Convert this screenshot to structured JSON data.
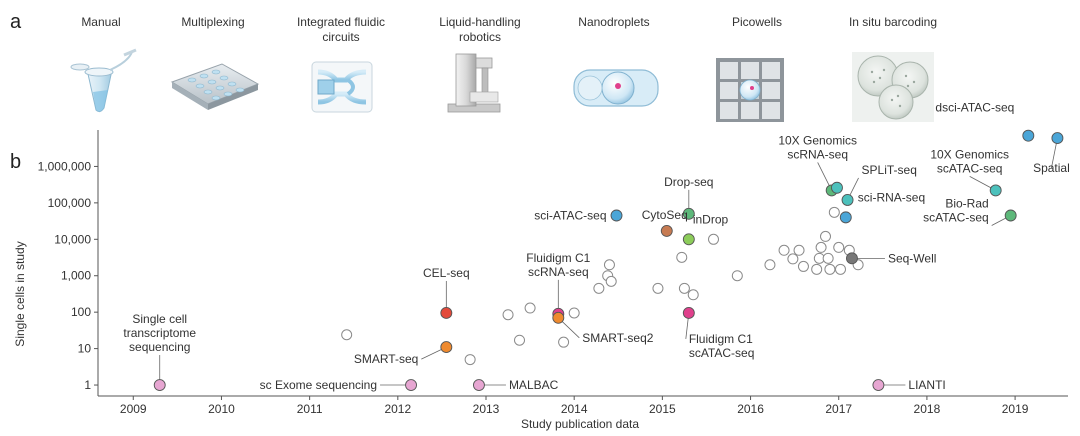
{
  "panels": {
    "a": "a",
    "b": "b"
  },
  "technologies": [
    {
      "lines": [
        "Manual"
      ],
      "icon": "tube-icon"
    },
    {
      "lines": [
        "Multiplexing"
      ],
      "icon": "plate-icon"
    },
    {
      "lines": [
        "Integrated fluidic",
        "circuits"
      ],
      "icon": "fluidic-circuit-icon"
    },
    {
      "lines": [
        "Liquid-handling",
        "robotics"
      ],
      "icon": "robot-icon"
    },
    {
      "lines": [
        "Nanodroplets"
      ],
      "icon": "droplet-icon"
    },
    {
      "lines": [
        "Picowells"
      ],
      "icon": "picowell-icon"
    },
    {
      "lines": [
        "In situ barcoding"
      ],
      "icon": "cells-icon"
    }
  ],
  "chart_data": {
    "type": "scatter",
    "xlabel": "Study publication data",
    "ylabel": "Single cells in study",
    "xlim": [
      2008.6,
      2019.6
    ],
    "ylim": [
      0.5,
      10000000
    ],
    "yscale": "log",
    "x_ticks": [
      "2009",
      "2010",
      "2011",
      "2012",
      "2013",
      "2014",
      "2015",
      "2016",
      "2017",
      "2018",
      "2019"
    ],
    "y_ticks": [
      {
        "value": 1,
        "label": "1"
      },
      {
        "value": 10,
        "label": "10"
      },
      {
        "value": 100,
        "label": "100"
      },
      {
        "value": 1000,
        "label": "1,000"
      },
      {
        "value": 10000,
        "label": "10,000"
      },
      {
        "value": 100000,
        "label": "100,000"
      },
      {
        "value": 1000000,
        "label": "1,000,000"
      }
    ],
    "colors": {
      "pink": "#e7a6d2",
      "orange": "#ef8a2e",
      "red": "#e34a3b",
      "magenta": "#e0408c",
      "blue": "#4ba6d8",
      "brown": "#c77b52",
      "green": "#5db87a",
      "lightgreen": "#8ccc5a",
      "teal": "#4cc1bc",
      "gray": "#777777",
      "open": "#ffffff"
    },
    "highlighted": [
      {
        "x": 2009.3,
        "y": 1,
        "color": "pink",
        "lines": [
          "Single cell",
          "transcriptome",
          "sequencing"
        ]
      },
      {
        "x": 2012.15,
        "y": 1,
        "color": "pink",
        "lines": [
          "sc Exome sequencing"
        ]
      },
      {
        "x": 2012.55,
        "y": 11,
        "color": "orange",
        "lines": [
          "SMART-seq"
        ]
      },
      {
        "x": 2012.55,
        "y": 95,
        "color": "red",
        "lines": [
          "CEL-seq"
        ]
      },
      {
        "x": 2012.92,
        "y": 1,
        "color": "pink",
        "lines": [
          "MALBAC"
        ]
      },
      {
        "x": 2013.82,
        "y": 90,
        "color": "magenta",
        "lines": [
          "Fluidigm C1",
          "scRNA-seq"
        ]
      },
      {
        "x": 2013.82,
        "y": 70,
        "color": "orange",
        "lines": [
          "SMART-seq2"
        ]
      },
      {
        "x": 2014.48,
        "y": 45000,
        "color": "blue",
        "lines": [
          "sci-ATAC-seq"
        ]
      },
      {
        "x": 2015.05,
        "y": 17000,
        "color": "brown",
        "lines": [
          "CytoSeq"
        ]
      },
      {
        "x": 2015.3,
        "y": 50000,
        "color": "green",
        "lines": [
          "Drop-seq"
        ]
      },
      {
        "x": 2015.3,
        "y": 10000,
        "color": "lightgreen",
        "lines": [
          "inDrop"
        ]
      },
      {
        "x": 2015.3,
        "y": 95,
        "color": "magenta",
        "lines": [
          "Fluidigm C1",
          "scATAC-seq"
        ]
      },
      {
        "x": 2016.92,
        "y": 220000,
        "color": "green",
        "lines": [
          "10X Genomics",
          "scRNA-seq"
        ]
      },
      {
        "x": 2016.98,
        "y": 260000,
        "color": "teal",
        "lines": []
      },
      {
        "x": 2017.1,
        "y": 120000,
        "color": "teal",
        "lines": [
          "SPLiT-seq"
        ]
      },
      {
        "x": 2017.08,
        "y": 40000,
        "color": "blue",
        "lines": [
          "sci-RNA-seq"
        ]
      },
      {
        "x": 2017.15,
        "y": 3000,
        "color": "gray",
        "lines": [
          "Seq-Well"
        ]
      },
      {
        "x": 2017.45,
        "y": 1,
        "color": "pink",
        "lines": [
          "LIANTI"
        ]
      },
      {
        "x": 2018.78,
        "y": 220000,
        "color": "teal",
        "lines": [
          "10X Genomics",
          "scATAC-seq"
        ]
      },
      {
        "x": 2018.95,
        "y": 45000,
        "color": "green",
        "lines": [
          "Bio-Rad",
          "scATAC-seq"
        ]
      },
      {
        "x": 2019.15,
        "y": 7000000,
        "color": "blue",
        "lines": [
          "dsci-ATAC-seq"
        ]
      },
      {
        "x": 2019.48,
        "y": 6000000,
        "color": "blue",
        "lines": [
          "Spatial"
        ]
      }
    ],
    "other_studies": [
      {
        "x": 2011.42,
        "y": 24
      },
      {
        "x": 2012.82,
        "y": 5
      },
      {
        "x": 2013.25,
        "y": 85
      },
      {
        "x": 2013.38,
        "y": 17
      },
      {
        "x": 2013.5,
        "y": 130
      },
      {
        "x": 2013.88,
        "y": 15
      },
      {
        "x": 2014.0,
        "y": 95
      },
      {
        "x": 2014.28,
        "y": 450
      },
      {
        "x": 2014.38,
        "y": 1000
      },
      {
        "x": 2014.4,
        "y": 2000
      },
      {
        "x": 2014.42,
        "y": 700
      },
      {
        "x": 2014.95,
        "y": 450
      },
      {
        "x": 2015.22,
        "y": 3200
      },
      {
        "x": 2015.25,
        "y": 450
      },
      {
        "x": 2015.35,
        "y": 300
      },
      {
        "x": 2015.58,
        "y": 10000
      },
      {
        "x": 2015.85,
        "y": 1000
      },
      {
        "x": 2016.22,
        "y": 2000
      },
      {
        "x": 2016.38,
        "y": 5000
      },
      {
        "x": 2016.48,
        "y": 2900
      },
      {
        "x": 2016.55,
        "y": 5000
      },
      {
        "x": 2016.6,
        "y": 1800
      },
      {
        "x": 2016.75,
        "y": 1500
      },
      {
        "x": 2016.78,
        "y": 3000
      },
      {
        "x": 2016.8,
        "y": 6000
      },
      {
        "x": 2016.85,
        "y": 12000
      },
      {
        "x": 2016.88,
        "y": 3000
      },
      {
        "x": 2016.9,
        "y": 1500
      },
      {
        "x": 2016.95,
        "y": 55000
      },
      {
        "x": 2017.0,
        "y": 6000
      },
      {
        "x": 2017.02,
        "y": 1500
      },
      {
        "x": 2017.12,
        "y": 5000
      },
      {
        "x": 2017.22,
        "y": 2000
      }
    ]
  }
}
